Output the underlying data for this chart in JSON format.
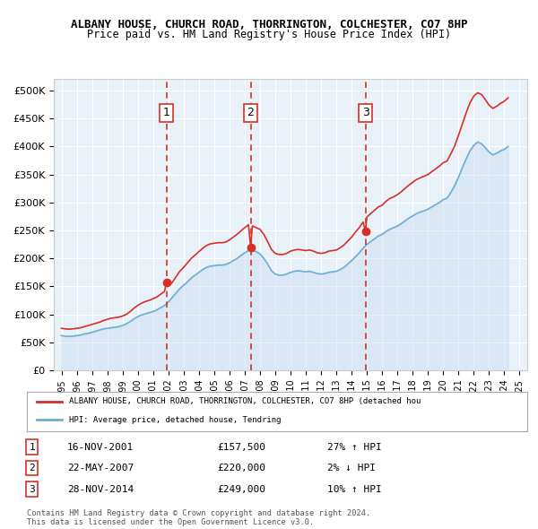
{
  "title1": "ALBANY HOUSE, CHURCH ROAD, THORRINGTON, COLCHESTER, CO7 8HP",
  "title2": "Price paid vs. HM Land Registry's House Price Index (HPI)",
  "ylabel_ticks": [
    "£0",
    "£50K",
    "£100K",
    "£150K",
    "£200K",
    "£250K",
    "£300K",
    "£350K",
    "£400K",
    "£450K",
    "£500K"
  ],
  "ytick_values": [
    0,
    50000,
    100000,
    150000,
    200000,
    250000,
    300000,
    350000,
    400000,
    450000,
    500000
  ],
  "xlim": [
    1994.5,
    2025.5
  ],
  "ylim": [
    0,
    520000
  ],
  "background_color": "#e8f0f8",
  "plot_bg": "#e8f0f8",
  "grid_color": "#ffffff",
  "hpi_color": "#6baed6",
  "hpi_fill_color": "#c6dbef",
  "price_color": "#d73027",
  "sale_marker_color": "#d73027",
  "dashed_line_color": "#d73027",
  "transaction_labels": [
    "1",
    "2",
    "3"
  ],
  "transaction_dates": [
    2001.88,
    2007.39,
    2014.91
  ],
  "transaction_prices": [
    157500,
    220000,
    249000
  ],
  "transaction_date_str": [
    "16-NOV-2001",
    "22-MAY-2007",
    "28-NOV-2014"
  ],
  "transaction_price_str": [
    "£157,500",
    "£220,000",
    "£249,000"
  ],
  "transaction_hpi_str": [
    "27% ↑ HPI",
    "2% ↓ HPI",
    "10% ↑ HPI"
  ],
  "legend_label_red": "ALBANY HOUSE, CHURCH ROAD, THORRINGTON, COLCHESTER, CO7 8HP (detached hou",
  "legend_label_blue": "HPI: Average price, detached house, Tendring",
  "footer1": "Contains HM Land Registry data © Crown copyright and database right 2024.",
  "footer2": "This data is licensed under the Open Government Licence v3.0.",
  "hpi_data_x": [
    1995.0,
    1995.25,
    1995.5,
    1995.75,
    1996.0,
    1996.25,
    1996.5,
    1996.75,
    1997.0,
    1997.25,
    1997.5,
    1997.75,
    1998.0,
    1998.25,
    1998.5,
    1998.75,
    1999.0,
    1999.25,
    1999.5,
    1999.75,
    2000.0,
    2000.25,
    2000.5,
    2000.75,
    2001.0,
    2001.25,
    2001.5,
    2001.75,
    2002.0,
    2002.25,
    2002.5,
    2002.75,
    2003.0,
    2003.25,
    2003.5,
    2003.75,
    2004.0,
    2004.25,
    2004.5,
    2004.75,
    2005.0,
    2005.25,
    2005.5,
    2005.75,
    2006.0,
    2006.25,
    2006.5,
    2006.75,
    2007.0,
    2007.25,
    2007.5,
    2007.75,
    2008.0,
    2008.25,
    2008.5,
    2008.75,
    2009.0,
    2009.25,
    2009.5,
    2009.75,
    2010.0,
    2010.25,
    2010.5,
    2010.75,
    2011.0,
    2011.25,
    2011.5,
    2011.75,
    2012.0,
    2012.25,
    2012.5,
    2012.75,
    2013.0,
    2013.25,
    2013.5,
    2013.75,
    2014.0,
    2014.25,
    2014.5,
    2014.75,
    2015.0,
    2015.25,
    2015.5,
    2015.75,
    2016.0,
    2016.25,
    2016.5,
    2016.75,
    2017.0,
    2017.25,
    2017.5,
    2017.75,
    2018.0,
    2018.25,
    2018.5,
    2018.75,
    2019.0,
    2019.25,
    2019.5,
    2019.75,
    2020.0,
    2020.25,
    2020.5,
    2020.75,
    2021.0,
    2021.25,
    2021.5,
    2021.75,
    2022.0,
    2022.25,
    2022.5,
    2022.75,
    2023.0,
    2023.25,
    2023.5,
    2023.75,
    2024.0,
    2024.25
  ],
  "hpi_data_y": [
    62000,
    61000,
    60500,
    61000,
    62000,
    63000,
    65000,
    66000,
    68000,
    70000,
    72000,
    74000,
    75000,
    76000,
    77000,
    78000,
    80000,
    83000,
    87000,
    92000,
    96000,
    99000,
    101000,
    103000,
    105000,
    108000,
    112000,
    116000,
    122000,
    130000,
    138000,
    146000,
    152000,
    158000,
    165000,
    170000,
    175000,
    180000,
    184000,
    186000,
    187000,
    188000,
    188000,
    189000,
    192000,
    196000,
    200000,
    205000,
    210000,
    214000,
    215000,
    212000,
    208000,
    200000,
    190000,
    178000,
    172000,
    170000,
    170000,
    172000,
    175000,
    177000,
    178000,
    177000,
    176000,
    177000,
    175000,
    173000,
    172000,
    173000,
    175000,
    176000,
    177000,
    180000,
    184000,
    190000,
    196000,
    203000,
    210000,
    218000,
    225000,
    230000,
    235000,
    240000,
    243000,
    248000,
    252000,
    255000,
    258000,
    262000,
    267000,
    272000,
    276000,
    280000,
    283000,
    285000,
    288000,
    292000,
    296000,
    300000,
    305000,
    308000,
    318000,
    330000,
    345000,
    362000,
    378000,
    392000,
    402000,
    408000,
    405000,
    398000,
    390000,
    385000,
    388000,
    392000,
    395000,
    400000
  ],
  "price_data_x": [
    1995.0,
    1995.25,
    1995.5,
    1995.75,
    1996.0,
    1996.25,
    1996.5,
    1996.75,
    1997.0,
    1997.25,
    1997.5,
    1997.75,
    1998.0,
    1998.25,
    1998.5,
    1998.75,
    1999.0,
    1999.25,
    1999.5,
    1999.75,
    2000.0,
    2000.25,
    2000.5,
    2000.75,
    2001.0,
    2001.25,
    2001.5,
    2001.75,
    2001.88,
    2002.0,
    2002.25,
    2002.5,
    2002.75,
    2003.0,
    2003.25,
    2003.5,
    2003.75,
    2004.0,
    2004.25,
    2004.5,
    2004.75,
    2005.0,
    2005.25,
    2005.5,
    2005.75,
    2006.0,
    2006.25,
    2006.5,
    2006.75,
    2007.0,
    2007.25,
    2007.39,
    2007.5,
    2007.75,
    2008.0,
    2008.25,
    2008.5,
    2008.75,
    2009.0,
    2009.25,
    2009.5,
    2009.75,
    2010.0,
    2010.25,
    2010.5,
    2010.75,
    2011.0,
    2011.25,
    2011.5,
    2011.75,
    2012.0,
    2012.25,
    2012.5,
    2012.75,
    2013.0,
    2013.25,
    2013.5,
    2013.75,
    2014.0,
    2014.25,
    2014.5,
    2014.75,
    2014.91,
    2015.0,
    2015.25,
    2015.5,
    2015.75,
    2016.0,
    2016.25,
    2016.5,
    2016.75,
    2017.0,
    2017.25,
    2017.5,
    2017.75,
    2018.0,
    2018.25,
    2018.5,
    2018.75,
    2019.0,
    2019.25,
    2019.5,
    2019.75,
    2020.0,
    2020.25,
    2020.5,
    2020.75,
    2021.0,
    2021.25,
    2021.5,
    2021.75,
    2022.0,
    2022.25,
    2022.5,
    2022.75,
    2023.0,
    2023.25,
    2023.5,
    2023.75,
    2024.0,
    2024.25
  ],
  "price_data_y": [
    75000,
    74000,
    73500,
    74000,
    75000,
    76000,
    78000,
    80000,
    82000,
    84000,
    86000,
    89000,
    91000,
    93000,
    94000,
    95000,
    97000,
    100000,
    105000,
    111000,
    116000,
    120000,
    123000,
    125000,
    128000,
    131000,
    136000,
    141000,
    157500,
    150000,
    157000,
    167000,
    177000,
    184000,
    192000,
    200000,
    206000,
    212000,
    218000,
    223000,
    226000,
    227000,
    228000,
    228000,
    229000,
    233000,
    238000,
    243000,
    249000,
    255000,
    260000,
    220000,
    258000,
    255000,
    252000,
    243000,
    230000,
    216000,
    209000,
    207000,
    207000,
    209000,
    213000,
    215000,
    216000,
    215000,
    214000,
    215000,
    213000,
    210000,
    209000,
    210000,
    213000,
    214000,
    215000,
    219000,
    224000,
    231000,
    238000,
    247000,
    255000,
    265000,
    249000,
    274000,
    280000,
    286000,
    292000,
    295000,
    302000,
    307000,
    310000,
    314000,
    319000,
    325000,
    331000,
    336000,
    341000,
    344000,
    347000,
    350000,
    355000,
    360000,
    365000,
    371000,
    374000,
    387000,
    401000,
    420000,
    440000,
    460000,
    478000,
    490000,
    496000,
    493000,
    484000,
    474000,
    468000,
    472000,
    477000,
    481000,
    487000
  ]
}
